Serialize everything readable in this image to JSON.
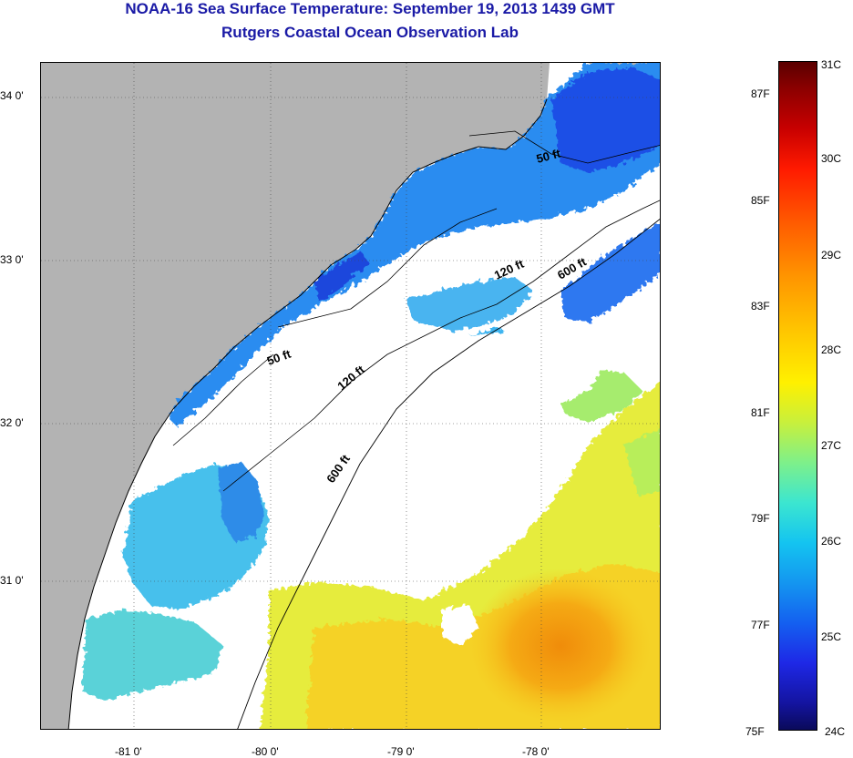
{
  "header": {
    "title": "NOAA-16 Sea Surface Temperature:  September 19, 2013 1439 GMT",
    "subtitle": "Rutgers Coastal Ocean Observation Lab"
  },
  "map": {
    "lat_ticks": [
      "34 0'",
      "33 0'",
      "32 0'",
      "31 0'"
    ],
    "lon_ticks": [
      "-81 0'",
      "-80 0'",
      "-79 0'",
      "-78 0'"
    ],
    "contours": {
      "c50_a": "50 ft",
      "c50_b": "50 ft",
      "c120_a": "120 ft",
      "c120_b": "120 ft",
      "c600_a": "600 ft",
      "c600_b": "600 ft"
    },
    "colors": {
      "land": "#b3b3b3",
      "no_data": "#ffffff",
      "cold": "#1e64f0",
      "cool": "#3cb4f0",
      "mild": "#6ee6c8",
      "warm": "#e6f03c",
      "hot": "#f5a014"
    }
  },
  "colorbar": {
    "celsius": [
      "31C",
      "30C",
      "29C",
      "28C",
      "27C",
      "26C",
      "25C",
      "24C"
    ],
    "fahrenheit": [
      "87F",
      "85F",
      "83F",
      "81F",
      "79F",
      "77F",
      "75F"
    ]
  }
}
